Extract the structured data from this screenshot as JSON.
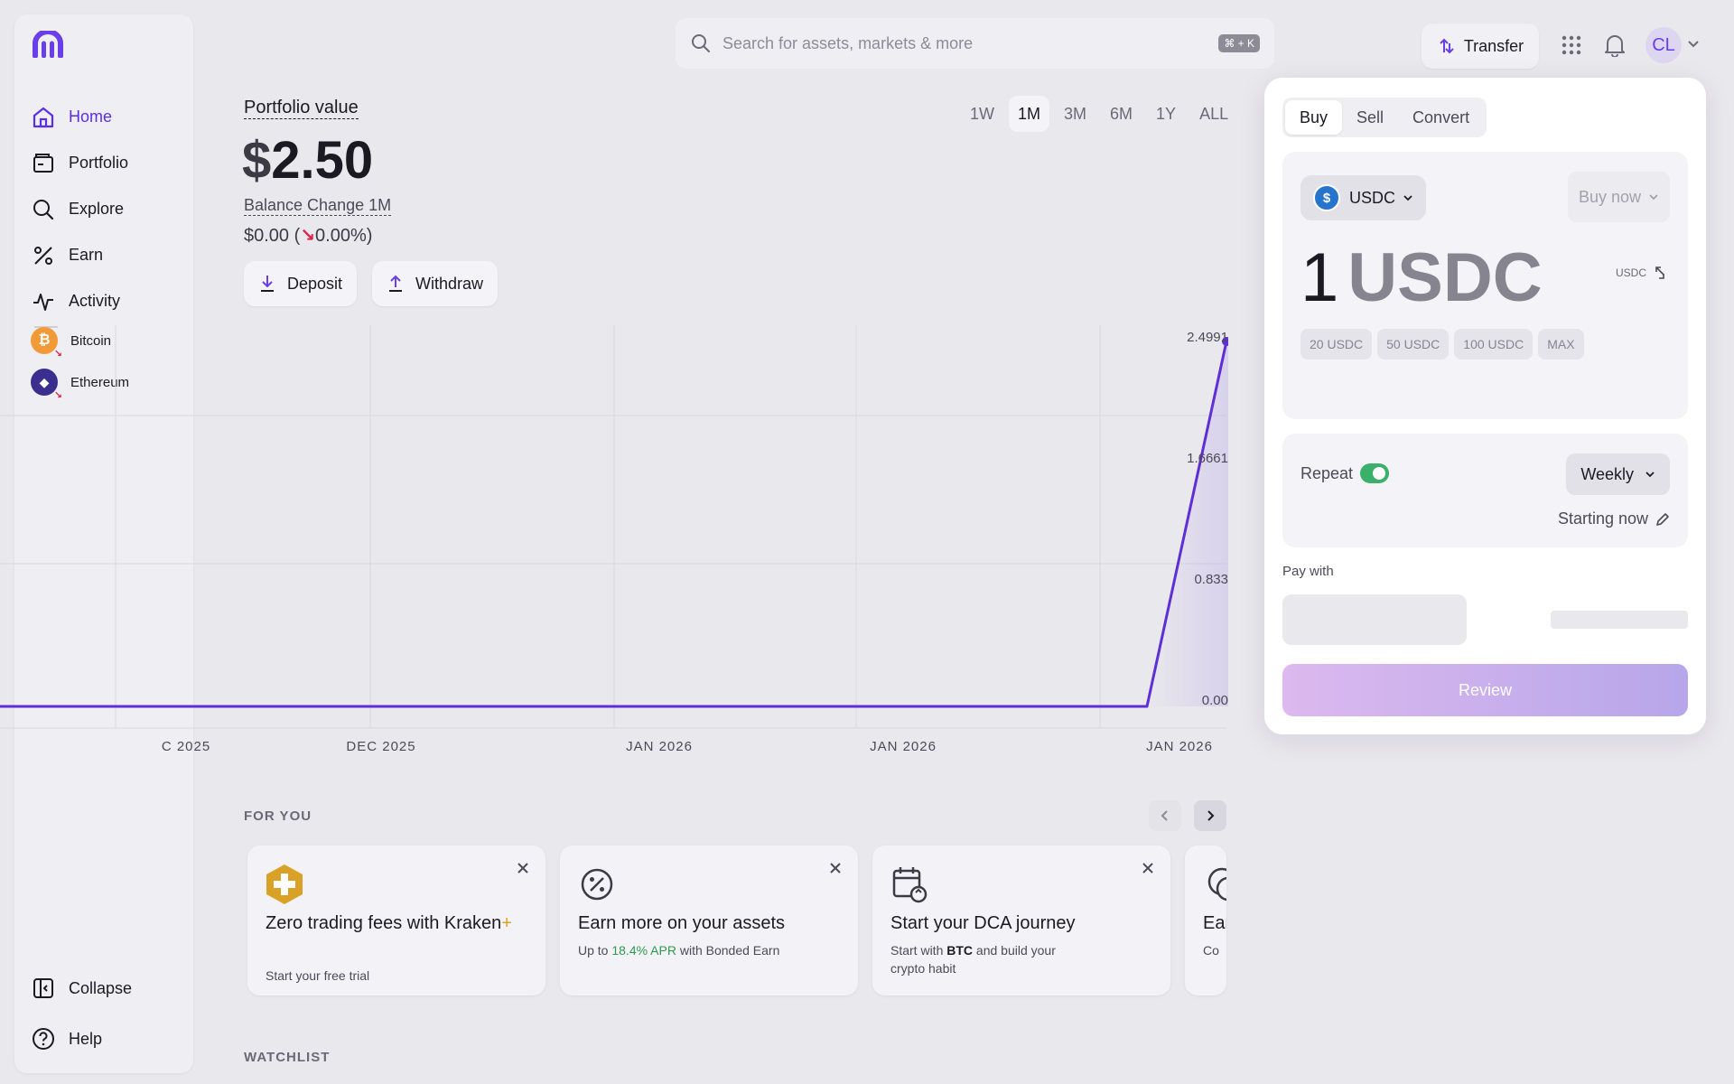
{
  "sidebar": {
    "nav": [
      {
        "label": "Home",
        "icon": "home-icon"
      },
      {
        "label": "Portfolio",
        "icon": "wallet-icon"
      },
      {
        "label": "Explore",
        "icon": "search-icon"
      },
      {
        "label": "Earn",
        "icon": "percent-icon"
      },
      {
        "label": "Activity",
        "icon": "activity-icon"
      }
    ],
    "assets": [
      {
        "label": "Bitcoin",
        "symbol": "₿",
        "color": "#f29a38"
      },
      {
        "label": "Ethereum",
        "symbol": "◆",
        "color": "#3a2f8e"
      }
    ],
    "collapse_label": "Collapse",
    "help_label": "Help"
  },
  "topbar": {
    "search_placeholder": "Search for assets, markets & more",
    "shortcut": "⌘ + K",
    "transfer_label": "Transfer",
    "avatar_initials": "CL"
  },
  "portfolio": {
    "label": "Portfolio value",
    "currency": "$",
    "value": "2.50",
    "balance_label": "Balance Change 1M",
    "balance_change": "$0.00",
    "balance_open": " (",
    "balance_arrow": "↘",
    "balance_pct": "0.00%)",
    "deposit_label": "Deposit",
    "withdraw_label": "Withdraw",
    "ranges": [
      "1W",
      "1M",
      "3M",
      "6M",
      "1Y",
      "ALL"
    ],
    "active_range": "1M"
  },
  "chart_data": {
    "type": "line",
    "x_tick_labels": [
      "C 2025",
      "DEC 2025",
      "JAN 2026",
      "JAN 2026",
      "JAN 2026"
    ],
    "y_tick_labels": [
      "2.4991",
      "1.6661",
      "0.833",
      "0.00"
    ],
    "series": [
      {
        "values": [
          0,
          0,
          0,
          0,
          0,
          0,
          0,
          0,
          0,
          2.4991
        ]
      }
    ],
    "ylim": [
      0,
      2.4991
    ],
    "grid": true,
    "line_color": "#5f2fd6"
  },
  "for_you": {
    "title": "FOR YOU",
    "cards": [
      {
        "title": "Zero trading fees with Kraken",
        "title_plus": "+",
        "sub": "Start your free trial"
      },
      {
        "title": "Earn more on your assets",
        "sub_pre": "Up to ",
        "sub_apr": "18.4% APR",
        "sub_post": " with Bonded Earn"
      },
      {
        "title": "Start your DCA journey",
        "sub_pre": "Start with ",
        "sub_bold": "BTC",
        "sub_post": " and build your crypto habit"
      },
      {
        "title": "Ear",
        "sub": "Co"
      }
    ]
  },
  "watchlist": {
    "title": "WATCHLIST"
  },
  "trade": {
    "tabs": [
      "Buy",
      "Sell",
      "Convert"
    ],
    "active_tab": "Buy",
    "asset": "USDC",
    "asset_symbol": "$",
    "order_type": "Buy now",
    "amount": "1",
    "amount_unit": "USDC",
    "swap_unit": "USDC",
    "chips": [
      "20 USDC",
      "50 USDC",
      "100 USDC",
      "MAX"
    ],
    "repeat_label": "Repeat",
    "frequency": "Weekly",
    "starting": "Starting now",
    "pay_with": "Pay with",
    "review_label": "Review"
  }
}
